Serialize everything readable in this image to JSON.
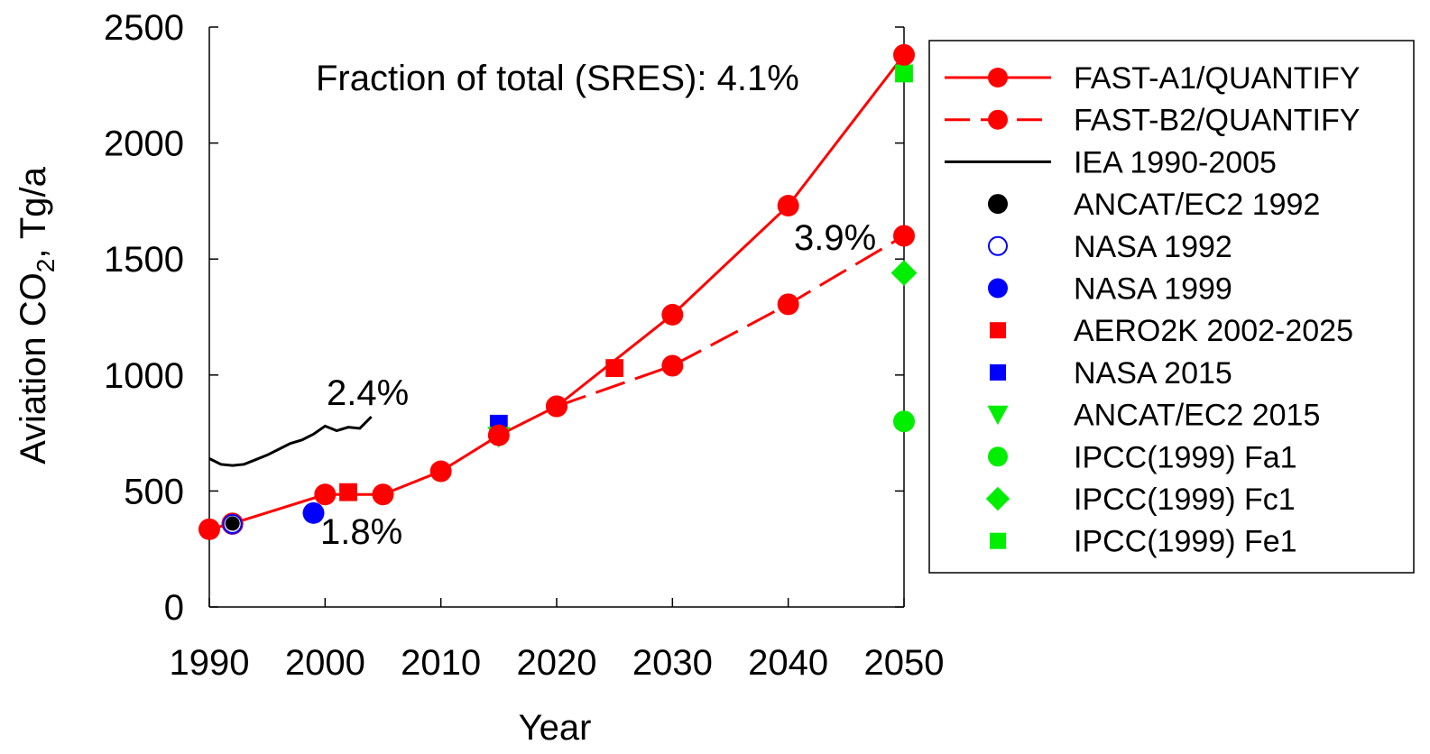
{
  "chart_data": {
    "type": "line",
    "xlabel": "Year",
    "ylabel_main": "Aviation CO",
    "ylabel_sub": "2",
    "ylabel_tail": ", Tg/a",
    "xlim": [
      1990,
      2050
    ],
    "ylim": [
      0,
      2500
    ],
    "xticks": [
      "1990",
      "2000",
      "2010",
      "2020",
      "2030",
      "2040",
      "2050"
    ],
    "yticks": [
      "0",
      "500",
      "1000",
      "1500",
      "2000",
      "2500"
    ],
    "annotations": [
      {
        "text": "Fraction of total (SRES): 4.1%"
      },
      {
        "text": "3.9%"
      },
      {
        "text": "2.4%"
      },
      {
        "text": "1.8%"
      }
    ],
    "series": [
      {
        "name": "FAST-A1/QUANTIFY",
        "color": "#ff0000",
        "line": "solid",
        "marker": "circle",
        "points": [
          [
            1990,
            335
          ],
          [
            1992,
            360
          ],
          [
            2000,
            485
          ],
          [
            2005,
            485
          ],
          [
            2010,
            585
          ],
          [
            2015,
            740
          ],
          [
            2020,
            865
          ],
          [
            2030,
            1260
          ],
          [
            2040,
            1730
          ],
          [
            2050,
            2380
          ]
        ]
      },
      {
        "name": "FAST-B2/QUANTIFY",
        "color": "#ff0000",
        "line": "dashed",
        "marker": "circle",
        "points": [
          [
            2020,
            865
          ],
          [
            2030,
            1040
          ],
          [
            2040,
            1305
          ],
          [
            2050,
            1600
          ]
        ]
      },
      {
        "name": "IEA 1990-2005",
        "color": "#000000",
        "line": "solid",
        "marker": "none",
        "points": [
          [
            1990,
            640
          ],
          [
            1991,
            615
          ],
          [
            1992,
            610
          ],
          [
            1993,
            615
          ],
          [
            1994,
            635
          ],
          [
            1995,
            655
          ],
          [
            1996,
            680
          ],
          [
            1997,
            705
          ],
          [
            1998,
            720
          ],
          [
            1999,
            745
          ],
          [
            2000,
            780
          ],
          [
            2001,
            760
          ],
          [
            2002,
            775
          ],
          [
            2003,
            770
          ],
          [
            2004,
            820
          ]
        ]
      },
      {
        "name": "ANCAT/EC2 1992",
        "color": "#000000",
        "line": "none",
        "marker": "circle",
        "points": [
          [
            1992,
            360
          ]
        ]
      },
      {
        "name": "NASA 1992",
        "color": "#0000ff",
        "line": "none",
        "marker": "open-circle",
        "points": [
          [
            1992,
            358
          ]
        ]
      },
      {
        "name": "NASA 1999",
        "color": "#0000ff",
        "line": "none",
        "marker": "circle",
        "points": [
          [
            1999,
            405
          ]
        ]
      },
      {
        "name": "AERO2K 2002-2025",
        "color": "#ff0000",
        "line": "none",
        "marker": "square",
        "points": [
          [
            2002,
            495
          ],
          [
            2025,
            1030
          ]
        ]
      },
      {
        "name": "NASA 2015",
        "color": "#0000ff",
        "line": "none",
        "marker": "square",
        "points": [
          [
            2015,
            790
          ]
        ]
      },
      {
        "name": "ANCAT/EC2 2015",
        "color": "#00ee00",
        "line": "none",
        "marker": "triangle-down",
        "points": [
          [
            2015,
            735
          ]
        ]
      },
      {
        "name": "IPCC(1999) Fa1",
        "color": "#00ee00",
        "line": "none",
        "marker": "circle",
        "points": [
          [
            2050,
            800
          ]
        ]
      },
      {
        "name": "IPCC(1999) Fc1",
        "color": "#00ee00",
        "line": "none",
        "marker": "diamond",
        "points": [
          [
            2050,
            1440
          ]
        ]
      },
      {
        "name": "IPCC(1999) Fe1",
        "color": "#00ee00",
        "line": "none",
        "marker": "square",
        "points": [
          [
            2050,
            2300
          ]
        ]
      }
    ],
    "legend_order": [
      0,
      1,
      2,
      3,
      4,
      5,
      6,
      7,
      8,
      9,
      10,
      11
    ],
    "legend_position": "right"
  }
}
